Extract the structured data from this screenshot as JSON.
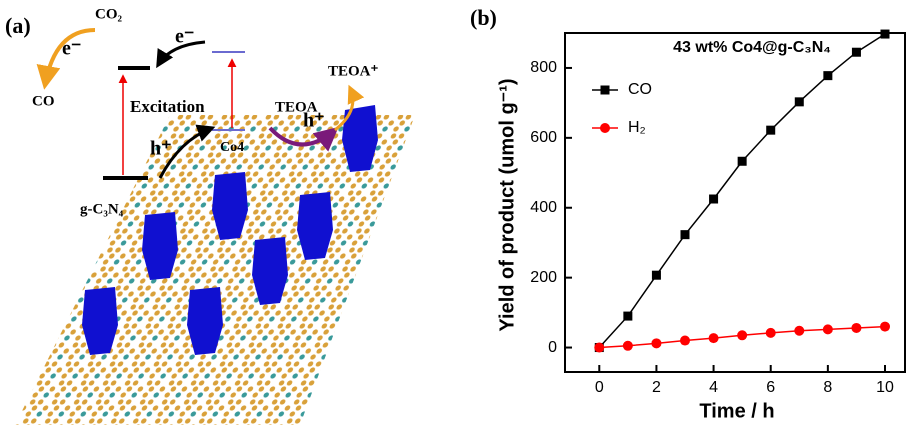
{
  "schematic": {
    "panel": "(a)",
    "co2": "CO₂",
    "e1": "e⁻",
    "e2": "e⁻",
    "co": "CO",
    "excitation": "Excitation",
    "teoa": "TEOA",
    "teoa_plus": "TEOA⁺",
    "h1": "h⁺",
    "h2": "h⁺",
    "co4": "Co4",
    "gcn": "g-C₃N₄"
  },
  "chart_data": {
    "type": "line",
    "panel": "(b)",
    "title": "43 wt% Co4@g-C₃N₄",
    "x_label": "Time / h",
    "y_label": "Yield of product (umol g⁻¹)",
    "x": [
      0,
      1,
      2,
      3,
      4,
      5,
      6,
      7,
      8,
      9,
      10
    ],
    "series": [
      {
        "name": "CO",
        "color": "#000000",
        "marker": "square",
        "values": [
          0,
          90,
          207,
          323,
          425,
          533,
          622,
          703,
          778,
          845,
          897
        ]
      },
      {
        "name": "H₂",
        "color": "#ff0000",
        "marker": "circle",
        "values": [
          0,
          5,
          12,
          20,
          27,
          35,
          42,
          48,
          52,
          56,
          60
        ]
      }
    ],
    "xlim": [
      -1.2,
      10.7
    ],
    "xticks": [
      0,
      2,
      4,
      6,
      8,
      10
    ],
    "ylim": [
      -70,
      900
    ],
    "yticks": [
      0,
      200,
      400,
      600,
      800
    ]
  }
}
